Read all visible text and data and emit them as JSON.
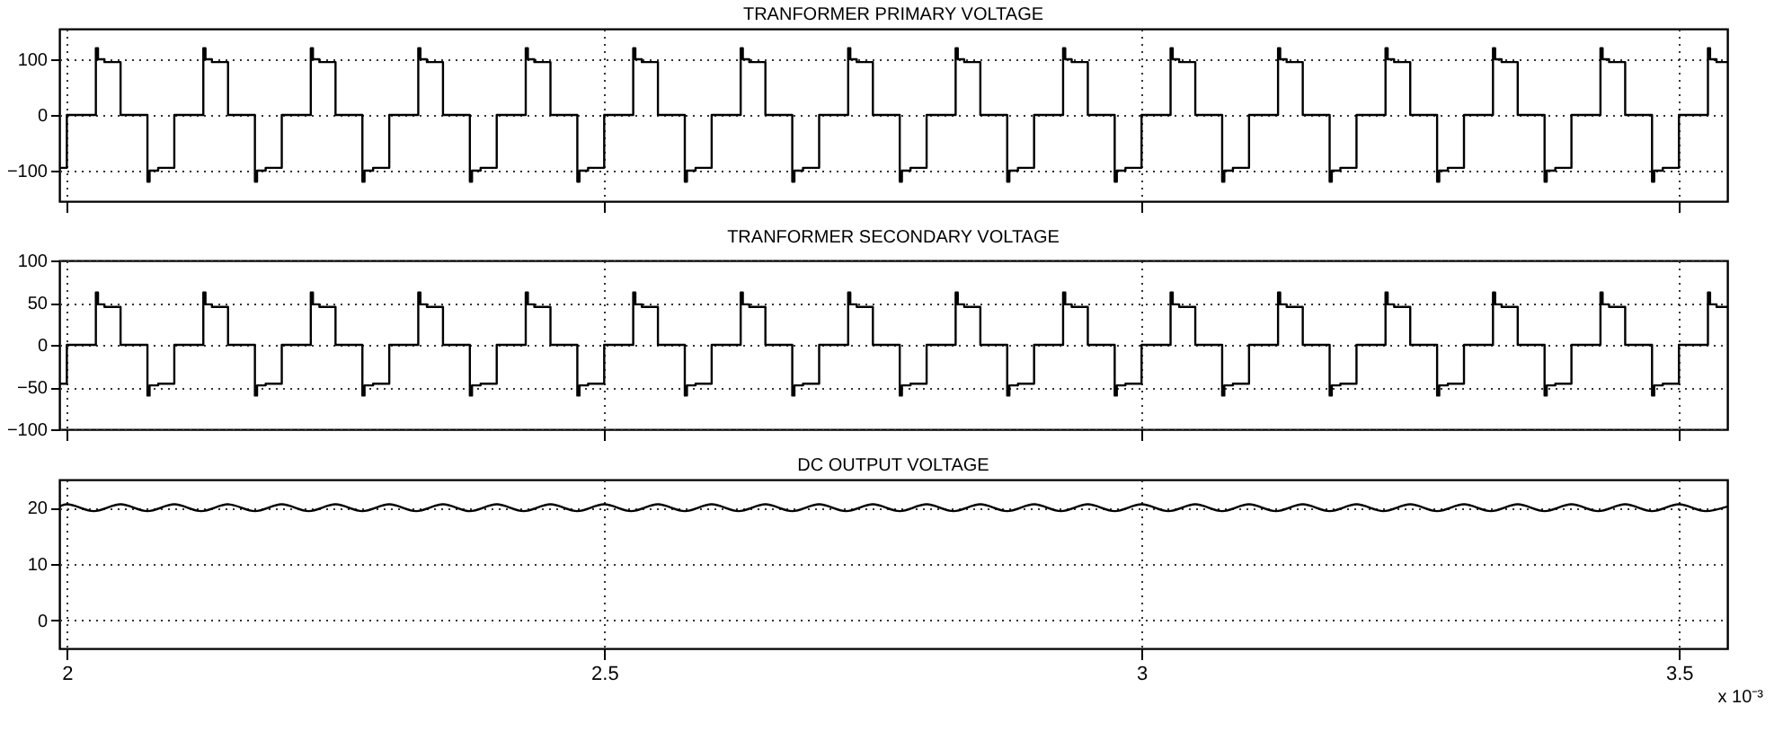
{
  "chart_data": [
    {
      "type": "step",
      "title": "TRANFORMER PRIMARY VOLTAGE",
      "xlim": [
        1.993,
        3.545
      ],
      "xticks": [
        2,
        2.5,
        3,
        3.5
      ],
      "ylim": [
        -155,
        155
      ],
      "yticks": [
        -100,
        0,
        100
      ],
      "grid": true,
      "tick_labels": "y",
      "x": [
        1.993,
        2.0,
        2.027,
        2.029,
        2.035,
        2.05,
        2.075,
        2.077,
        2.085,
        2.1,
        2.127,
        2.129,
        2.135,
        2.15,
        2.175,
        2.177,
        2.185,
        2.2,
        2.227,
        2.229,
        2.235,
        2.25,
        2.275,
        2.277,
        2.285,
        2.3,
        2.327,
        2.329,
        2.335,
        2.35,
        2.375,
        2.377,
        2.385,
        2.4,
        2.427,
        2.429,
        2.435,
        2.45,
        2.475,
        2.477,
        2.485,
        2.5,
        2.527,
        2.529,
        2.535,
        2.55,
        2.575,
        2.577,
        2.585,
        2.6,
        2.627,
        2.629,
        2.635,
        2.65,
        2.675,
        2.677,
        2.685,
        2.7,
        2.727,
        2.729,
        2.735,
        2.75,
        2.775,
        2.777,
        2.785,
        2.8,
        2.827,
        2.829,
        2.835,
        2.85,
        2.875,
        2.877,
        2.885,
        2.9,
        2.927,
        2.929,
        2.935,
        2.95,
        2.975,
        2.977,
        2.985,
        3.0,
        3.027,
        3.029,
        3.035,
        3.05,
        3.075,
        3.077,
        3.085,
        3.1,
        3.127,
        3.129,
        3.135,
        3.15,
        3.175,
        3.177,
        3.185,
        3.2,
        3.227,
        3.229,
        3.235,
        3.25,
        3.275,
        3.277,
        3.285,
        3.3,
        3.327,
        3.329,
        3.335,
        3.35,
        3.375,
        3.377,
        3.385,
        3.4,
        3.427,
        3.429,
        3.435,
        3.45,
        3.475,
        3.477,
        3.485,
        3.5,
        3.527,
        3.529,
        3.535,
        3.545
      ],
      "series": [
        {
          "color": "#000000",
          "values": [
            -95,
            0,
            120,
            100,
            95,
            0,
            -120,
            -100,
            -95,
            0,
            120,
            100,
            95,
            0,
            -120,
            -100,
            -95,
            0,
            120,
            100,
            95,
            0,
            -120,
            -100,
            -95,
            0,
            120,
            100,
            95,
            0,
            -120,
            -100,
            -95,
            0,
            120,
            100,
            95,
            0,
            -120,
            -100,
            -95,
            0,
            120,
            100,
            95,
            0,
            -120,
            -100,
            -95,
            0,
            120,
            100,
            95,
            0,
            -120,
            -100,
            -95,
            0,
            120,
            100,
            95,
            0,
            -120,
            -100,
            -95,
            0,
            120,
            100,
            95,
            0,
            -120,
            -100,
            -95,
            0,
            120,
            100,
            95,
            0,
            -120,
            -100,
            -95,
            0,
            120,
            100,
            95,
            0,
            -120,
            -100,
            -95,
            0,
            120,
            100,
            95,
            0,
            -120,
            -100,
            -95,
            0,
            120,
            100,
            95,
            0,
            -120,
            -100,
            -95,
            0,
            120,
            100,
            95,
            0,
            -120,
            -100,
            -95,
            0,
            120,
            100,
            95,
            0,
            -120,
            -100,
            -95,
            0,
            120,
            100,
            95,
            95
          ]
        }
      ]
    },
    {
      "type": "step",
      "title": "TRANFORMER SECONDARY VOLTAGE",
      "xlim": [
        1.993,
        3.545
      ],
      "xticks": [
        2,
        2.5,
        3,
        3.5
      ],
      "ylim": [
        -100,
        100
      ],
      "yticks": [
        -100,
        -50,
        0,
        50,
        100
      ],
      "grid": true,
      "tick_labels": "y",
      "x": [
        1.993,
        2.0,
        2.027,
        2.029,
        2.035,
        2.05,
        2.075,
        2.077,
        2.085,
        2.1,
        2.127,
        2.129,
        2.135,
        2.15,
        2.175,
        2.177,
        2.185,
        2.2,
        2.227,
        2.229,
        2.235,
        2.25,
        2.275,
        2.277,
        2.285,
        2.3,
        2.327,
        2.329,
        2.335,
        2.35,
        2.375,
        2.377,
        2.385,
        2.4,
        2.427,
        2.429,
        2.435,
        2.45,
        2.475,
        2.477,
        2.485,
        2.5,
        2.527,
        2.529,
        2.535,
        2.55,
        2.575,
        2.577,
        2.585,
        2.6,
        2.627,
        2.629,
        2.635,
        2.65,
        2.675,
        2.677,
        2.685,
        2.7,
        2.727,
        2.729,
        2.735,
        2.75,
        2.775,
        2.777,
        2.785,
        2.8,
        2.827,
        2.829,
        2.835,
        2.85,
        2.875,
        2.877,
        2.885,
        2.9,
        2.927,
        2.929,
        2.935,
        2.95,
        2.975,
        2.977,
        2.985,
        3.0,
        3.027,
        3.029,
        3.035,
        3.05,
        3.075,
        3.077,
        3.085,
        3.1,
        3.127,
        3.129,
        3.135,
        3.15,
        3.175,
        3.177,
        3.185,
        3.2,
        3.227,
        3.229,
        3.235,
        3.25,
        3.275,
        3.277,
        3.285,
        3.3,
        3.327,
        3.329,
        3.335,
        3.35,
        3.375,
        3.377,
        3.385,
        3.4,
        3.427,
        3.429,
        3.435,
        3.45,
        3.475,
        3.477,
        3.485,
        3.5,
        3.527,
        3.529,
        3.535,
        3.545
      ],
      "series": [
        {
          "color": "#000000",
          "values": [
            -46,
            0,
            62,
            48,
            45,
            0,
            -60,
            -48,
            -46,
            0,
            62,
            48,
            45,
            0,
            -60,
            -48,
            -46,
            0,
            62,
            48,
            45,
            0,
            -60,
            -48,
            -46,
            0,
            62,
            48,
            45,
            0,
            -60,
            -48,
            -46,
            0,
            62,
            48,
            45,
            0,
            -60,
            -48,
            -46,
            0,
            62,
            48,
            45,
            0,
            -60,
            -48,
            -46,
            0,
            62,
            48,
            45,
            0,
            -60,
            -48,
            -46,
            0,
            62,
            48,
            45,
            0,
            -60,
            -48,
            -46,
            0,
            62,
            48,
            45,
            0,
            -60,
            -48,
            -46,
            0,
            62,
            48,
            45,
            0,
            -60,
            -48,
            -46,
            0,
            62,
            48,
            45,
            0,
            -60,
            -48,
            -46,
            0,
            62,
            48,
            45,
            0,
            -60,
            -48,
            -46,
            0,
            62,
            48,
            45,
            0,
            -60,
            -48,
            -46,
            0,
            62,
            48,
            45,
            0,
            -60,
            -48,
            -46,
            0,
            62,
            48,
            45,
            0,
            -60,
            -48,
            -46,
            0,
            62,
            48,
            45,
            45
          ]
        }
      ]
    },
    {
      "type": "line",
      "title": "DC OUTPUT VOLTAGE",
      "xlim": [
        1.993,
        3.545
      ],
      "xticks": [
        2,
        2.5,
        3,
        3.5
      ],
      "ylim": [
        -5,
        25
      ],
      "yticks": [
        0,
        10,
        20
      ],
      "grid": true,
      "annotations": [
        "x 10⁻³"
      ],
      "x": [
        1.993,
        2.0,
        2.025,
        2.05,
        2.075,
        2.1,
        2.125,
        2.15,
        2.175,
        2.2,
        2.225,
        2.25,
        2.275,
        2.3,
        2.325,
        2.35,
        2.375,
        2.4,
        2.425,
        2.45,
        2.475,
        2.5,
        2.525,
        2.55,
        2.575,
        2.6,
        2.625,
        2.65,
        2.675,
        2.7,
        2.725,
        2.75,
        2.775,
        2.8,
        2.825,
        2.85,
        2.875,
        2.9,
        2.925,
        2.95,
        2.975,
        3.0,
        3.025,
        3.05,
        3.075,
        3.1,
        3.125,
        3.15,
        3.175,
        3.2,
        3.225,
        3.25,
        3.275,
        3.3,
        3.325,
        3.35,
        3.375,
        3.4,
        3.425,
        3.45,
        3.475,
        3.5,
        3.525,
        3.545
      ],
      "series": [
        {
          "color": "#000000",
          "values": [
            20.2,
            20.6,
            19.4,
            20.6,
            19.4,
            20.6,
            19.4,
            20.6,
            19.4,
            20.6,
            19.4,
            20.6,
            19.4,
            20.6,
            19.4,
            20.6,
            19.4,
            20.6,
            19.4,
            20.6,
            19.4,
            20.6,
            19.4,
            20.6,
            19.4,
            20.6,
            19.4,
            20.6,
            19.4,
            20.6,
            19.4,
            20.6,
            19.4,
            20.6,
            19.4,
            20.6,
            19.4,
            20.6,
            19.4,
            20.6,
            19.4,
            20.6,
            19.4,
            20.6,
            19.4,
            20.6,
            19.4,
            20.6,
            19.4,
            20.6,
            19.4,
            20.6,
            19.4,
            20.6,
            19.4,
            20.6,
            19.4,
            20.6,
            19.4,
            20.6,
            19.4,
            20.6,
            19.4,
            20.2
          ]
        }
      ]
    }
  ]
}
